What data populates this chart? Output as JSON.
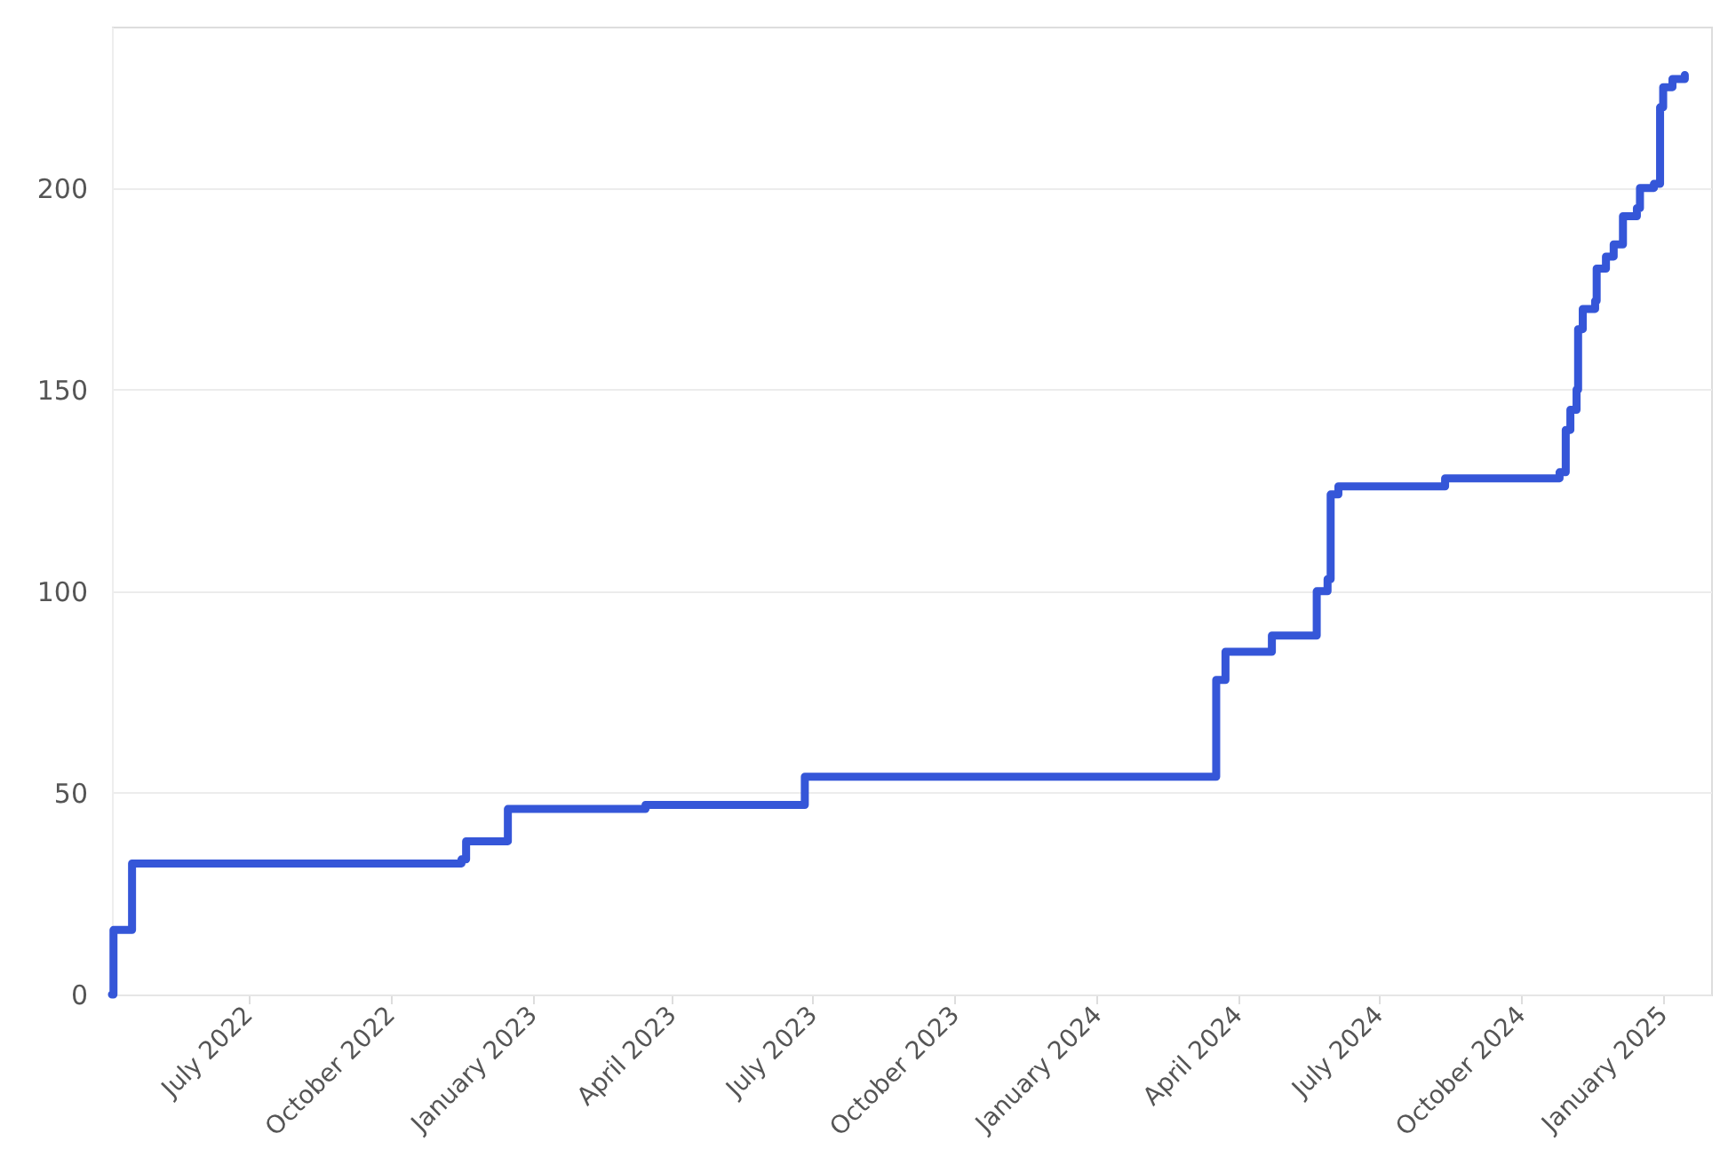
{
  "chart_data": {
    "type": "step",
    "color": "#3556d8",
    "line_style": "solid",
    "marker": "none",
    "grid": "y",
    "x": [
      "2022-04-04",
      "2022-04-05",
      "2022-04-17",
      "2022-11-16",
      "2022-11-19",
      "2022-12-16",
      "2023-03-15",
      "2023-06-26",
      "2024-03-18",
      "2024-03-24",
      "2024-04-23",
      "2024-05-22",
      "2024-05-29",
      "2024-05-31",
      "2024-06-05",
      "2024-08-13",
      "2024-10-26",
      "2024-10-30",
      "2024-11-02",
      "2024-11-06",
      "2024-11-07",
      "2024-11-10",
      "2024-11-18",
      "2024-11-19",
      "2024-11-25",
      "2024-11-30",
      "2024-12-06",
      "2024-12-15",
      "2024-12-17",
      "2024-12-26",
      "2024-12-30",
      "2025-01-01",
      "2025-01-07",
      "2025-01-15"
    ],
    "values": [
      0,
      16,
      32.5,
      33.5,
      38,
      46,
      47,
      54,
      78,
      85,
      89,
      100,
      103,
      124,
      126,
      128,
      129.5,
      140,
      145,
      150,
      165,
      170,
      172,
      180,
      183,
      186,
      193,
      195,
      200,
      201,
      220,
      225,
      227,
      228
    ],
    "xlim": [
      "2022-04-04",
      "2025-02-01"
    ],
    "xticks": [
      {
        "value": "2022-07-01",
        "label": "July 2022"
      },
      {
        "value": "2022-10-01",
        "label": "October 2022"
      },
      {
        "value": "2023-01-01",
        "label": "January 2023"
      },
      {
        "value": "2023-04-01",
        "label": "April 2023"
      },
      {
        "value": "2023-07-01",
        "label": "July 2023"
      },
      {
        "value": "2023-10-01",
        "label": "October 2023"
      },
      {
        "value": "2024-01-01",
        "label": "January 2024"
      },
      {
        "value": "2024-04-01",
        "label": "April 2024"
      },
      {
        "value": "2024-07-01",
        "label": "July 2024"
      },
      {
        "value": "2024-10-01",
        "label": "October 2024"
      },
      {
        "value": "2025-01-01",
        "label": "January 2025"
      }
    ],
    "ylim": [
      0,
      240
    ],
    "yticks": [
      0,
      50,
      100,
      150,
      200
    ]
  }
}
